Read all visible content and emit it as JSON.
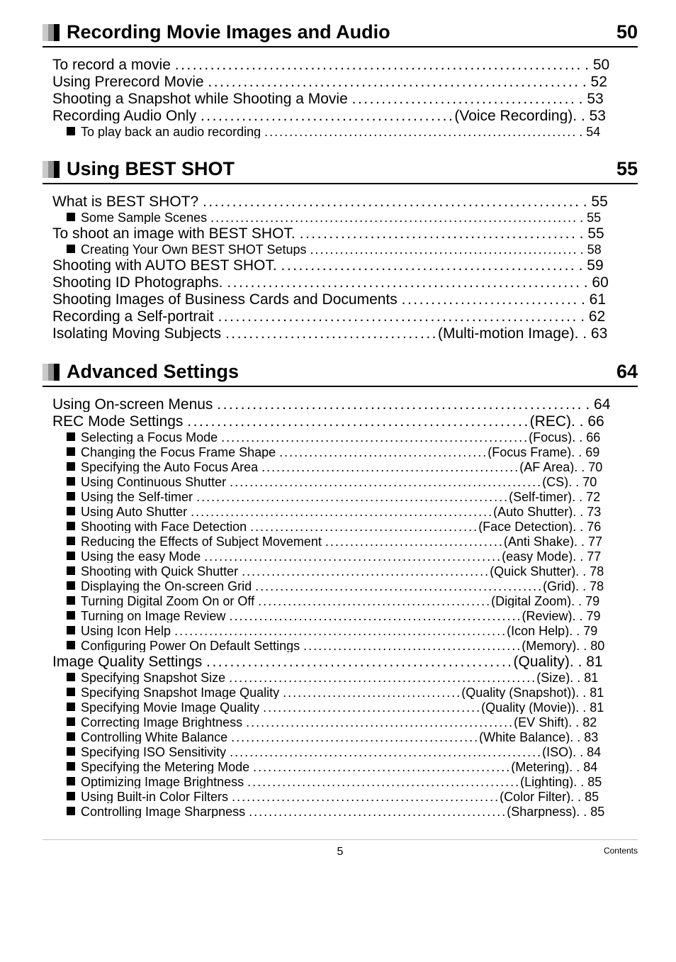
{
  "sections": [
    {
      "title": "Recording Movie Images and Audio",
      "page": "50",
      "items": [
        {
          "level": 1,
          "before": "To record a movie",
          "tag": null,
          "page": "50"
        },
        {
          "level": 1,
          "before": "Using Prerecord Movie",
          "tag": null,
          "page": "52"
        },
        {
          "level": 1,
          "before": "Shooting a Snapshot while Shooting a Movie",
          "tag": null,
          "page": "53"
        },
        {
          "level": 1,
          "before": "Recording Audio Only",
          "tag": "(Voice Recording)",
          "page": "53"
        },
        {
          "level": 2,
          "before": "To play back an audio recording",
          "tag": null,
          "page": "54"
        }
      ]
    },
    {
      "title": "Using BEST SHOT",
      "page": "55",
      "items": [
        {
          "level": 1,
          "before": "What is BEST SHOT?",
          "tag": null,
          "page": "55"
        },
        {
          "level": 2,
          "before": "Some Sample Scenes",
          "tag": null,
          "page": "55"
        },
        {
          "level": 1,
          "before": "To shoot an image with BEST SHOT.",
          "tag": null,
          "page": "55"
        },
        {
          "level": 2,
          "before": "Creating Your Own BEST SHOT Setups",
          "tag": null,
          "page": "58"
        },
        {
          "level": 1,
          "before": "Shooting with AUTO BEST SHOT.",
          "tag": null,
          "page": "59"
        },
        {
          "level": 1,
          "before": "Shooting ID Photographs.",
          "tag": null,
          "page": "60"
        },
        {
          "level": 1,
          "before": "Shooting Images of Business Cards and Documents",
          "tag": null,
          "page": "61"
        },
        {
          "level": 1,
          "before": "Recording a Self-portrait",
          "tag": null,
          "page": "62"
        },
        {
          "level": 1,
          "before": "Isolating Moving Subjects",
          "tag": "(Multi-motion Image)",
          "page": "63"
        }
      ]
    },
    {
      "title": "Advanced Settings",
      "page": "64",
      "items": [
        {
          "level": 1,
          "before": "Using On-screen Menus",
          "tag": null,
          "page": "64"
        },
        {
          "level": 1,
          "before": "REC Mode Settings ",
          "tag": "(REC)",
          "page": "66"
        },
        {
          "level": 2,
          "before": "Selecting a Focus Mode ",
          "tag": "(Focus)",
          "page": "66"
        },
        {
          "level": 2,
          "before": "Changing the Focus Frame Shape ",
          "tag": "(Focus Frame)",
          "page": "69"
        },
        {
          "level": 2,
          "before": "Specifying the Auto Focus Area",
          "tag": "(AF Area)",
          "page": "70"
        },
        {
          "level": 2,
          "before": "Using Continuous Shutter ",
          "tag": "(CS)",
          "page": "70"
        },
        {
          "level": 2,
          "before": "Using the Self-timer",
          "tag": "(Self-timer)",
          "page": "72"
        },
        {
          "level": 2,
          "before": "Using Auto Shutter",
          "tag": "(Auto Shutter)",
          "page": "73"
        },
        {
          "level": 2,
          "before": "Shooting with Face Detection ",
          "tag": "(Face Detection)",
          "page": "76"
        },
        {
          "level": 2,
          "before": "Reducing the Effects of Subject Movement",
          "tag": "(Anti Shake)",
          "page": "77"
        },
        {
          "level": 2,
          "before": "Using the easy Mode ",
          "tag": "(easy Mode)",
          "page": "77"
        },
        {
          "level": 2,
          "before": "Shooting with Quick Shutter",
          "tag": "(Quick Shutter)",
          "page": "78"
        },
        {
          "level": 2,
          "before": "Displaying the On-screen Grid",
          "tag": "(Grid)",
          "page": "78"
        },
        {
          "level": 2,
          "before": "Turning Digital Zoom On or Off ",
          "tag": "(Digital Zoom)",
          "page": "79"
        },
        {
          "level": 2,
          "before": "Turning on Image Review ",
          "tag": "(Review)",
          "page": "79"
        },
        {
          "level": 2,
          "before": "Using Icon Help ",
          "tag": "(Icon Help)",
          "page": "79"
        },
        {
          "level": 2,
          "before": "Configuring Power On Default Settings",
          "tag": "(Memory)",
          "page": "80"
        },
        {
          "level": 1,
          "before": "Image Quality Settings ",
          "tag": "(Quality)",
          "page": "81"
        },
        {
          "level": 2,
          "before": "Specifying Snapshot Size ",
          "tag": "(Size)",
          "page": "81"
        },
        {
          "level": 2,
          "before": "Specifying Snapshot Image Quality",
          "tag": "(Quality (Snapshot))",
          "page": "81"
        },
        {
          "level": 2,
          "before": "Specifying Movie Image Quality",
          "tag": "(Quality (Movie))",
          "page": "81"
        },
        {
          "level": 2,
          "before": "Correcting Image Brightness ",
          "tag": "(EV Shift)",
          "page": "82"
        },
        {
          "level": 2,
          "before": "Controlling White Balance ",
          "tag": "(White Balance)",
          "page": "83"
        },
        {
          "level": 2,
          "before": "Specifying ISO Sensitivity ",
          "tag": "(ISO)",
          "page": "84"
        },
        {
          "level": 2,
          "before": "Specifying the Metering Mode ",
          "tag": "(Metering)",
          "page": "84"
        },
        {
          "level": 2,
          "before": "Optimizing Image Brightness",
          "tag": "(Lighting)",
          "page": "85"
        },
        {
          "level": 2,
          "before": "Using Built-in Color Filters ",
          "tag": "(Color Filter)",
          "page": "85"
        },
        {
          "level": 2,
          "before": "Controlling Image Sharpness",
          "tag": "(Sharpness)",
          "page": "85"
        }
      ]
    }
  ],
  "footer": {
    "pageNumber": "5",
    "label": "Contents"
  },
  "layout": {
    "lineWidthLvl1": 780,
    "lineWidthLvl2": 760,
    "dotCharWidthLvl1": 8.2,
    "dotCharWidthLvl2": 7.0
  }
}
